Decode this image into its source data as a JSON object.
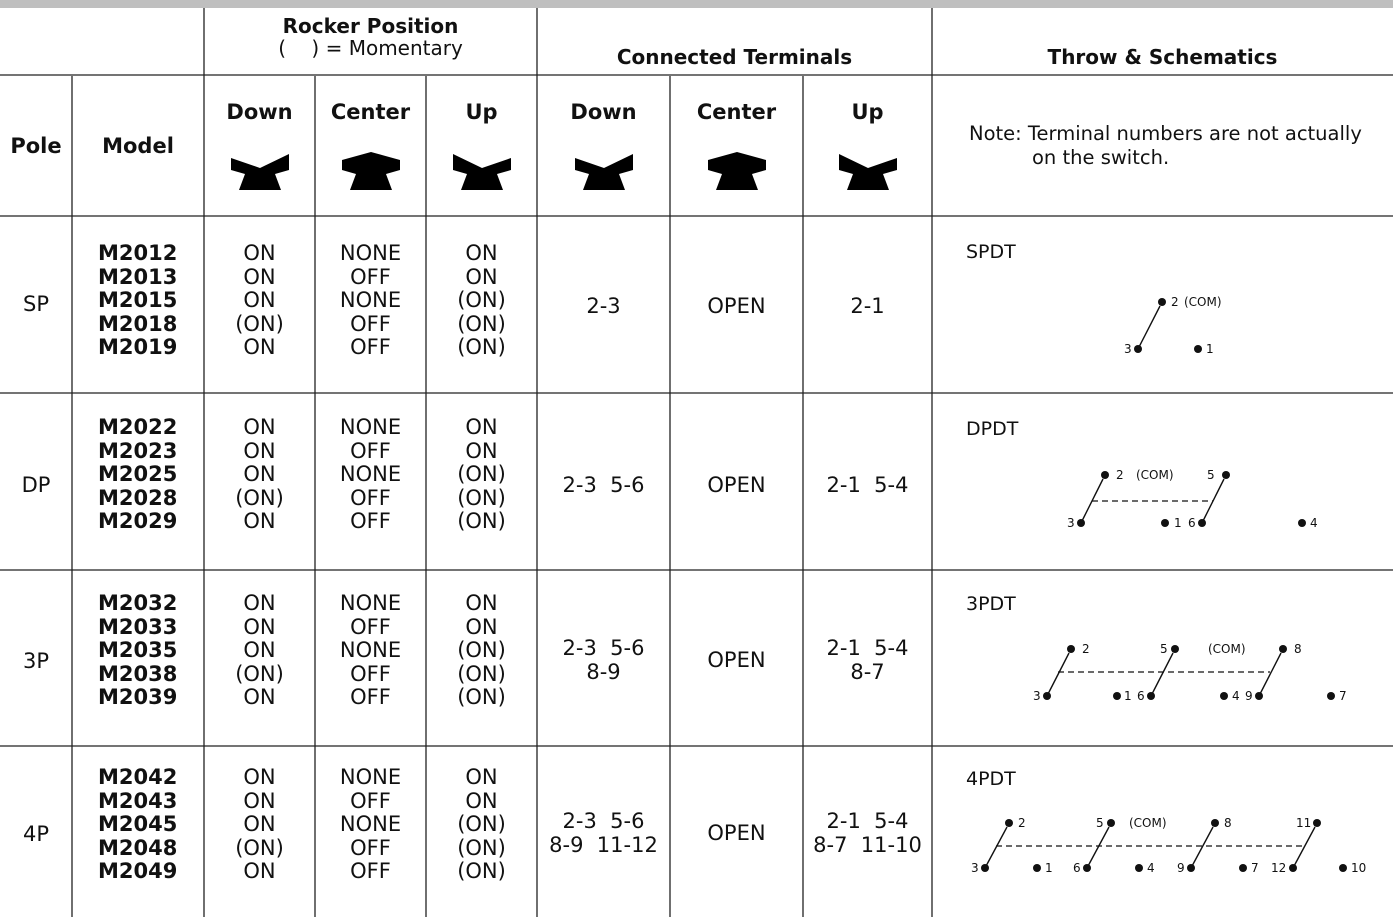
{
  "header": {
    "rocker_title": "Rocker Position",
    "rocker_sub": "(    ) = Momentary",
    "connected": "Connected Terminals",
    "throw": "Throw & Schematics"
  },
  "columns": {
    "pole": "Pole",
    "model": "Model",
    "down": "Down",
    "center": "Center",
    "up": "Up"
  },
  "note": "Note:  Terminal numbers are not actually on the switch.",
  "rows": [
    {
      "pole": "SP",
      "models": "M2012\nM2013\nM2015\nM2018\nM2019",
      "down": "ON\nON\nON\n(ON)\nON",
      "center": "NONE\nOFF\nNONE\nOFF\nOFF",
      "up": "ON\nON\n(ON)\n(ON)\n(ON)",
      "conn_down": "2-3",
      "conn_center": "OPEN",
      "conn_up": "2-1",
      "throw": "SPDT"
    },
    {
      "pole": "DP",
      "models": "M2022\nM2023\nM2025\nM2028\nM2029",
      "down": "ON\nON\nON\n(ON)\nON",
      "center": "NONE\nOFF\nNONE\nOFF\nOFF",
      "up": "ON\nON\n(ON)\n(ON)\n(ON)",
      "conn_down": "2-3  5-6",
      "conn_center": "OPEN",
      "conn_up": "2-1  5-4",
      "throw": "DPDT"
    },
    {
      "pole": "3P",
      "models": "M2032\nM2033\nM2035\nM2038\nM2039",
      "down": "ON\nON\nON\n(ON)\nON",
      "center": "NONE\nOFF\nNONE\nOFF\nOFF",
      "up": "ON\nON\n(ON)\n(ON)\n(ON)",
      "conn_down": "2-3  5-6\n8-9",
      "conn_center": "OPEN",
      "conn_up": "2-1  5-4\n8-7",
      "throw": "3PDT"
    },
    {
      "pole": "4P",
      "models": "M2042\nM2043\nM2045\nM2048\nM2049",
      "down": "ON\nON\nON\n(ON)\nON",
      "center": "NONE\nOFF\nNONE\nOFF\nOFF",
      "up": "ON\nON\n(ON)\n(ON)\n(ON)",
      "conn_down": "2-3  5-6\n8-9  11-12",
      "conn_center": "OPEN",
      "conn_up": "2-1  5-4\n8-7  11-10",
      "throw": "4PDT"
    }
  ],
  "schematics": {
    "com": "(COM)",
    "sp": {
      "t2": "2",
      "t3": "3",
      "t1": "1"
    },
    "dp": {
      "t2": "2",
      "t5": "5",
      "t3": "3",
      "t1": "1",
      "t6": "6",
      "t4": "4"
    },
    "p3": {
      "t2": "2",
      "t5": "5",
      "t8": "8",
      "t3": "3",
      "t1": "1",
      "t6": "6",
      "t4": "4",
      "t9": "9",
      "t7": "7"
    },
    "p4": {
      "t2": "2",
      "t5": "5",
      "t8": "8",
      "t11": "11",
      "t3": "3",
      "t1": "1",
      "t6": "6",
      "t4": "4",
      "t9": "9",
      "t7": "7",
      "t12": "12",
      "t10": "10"
    }
  }
}
